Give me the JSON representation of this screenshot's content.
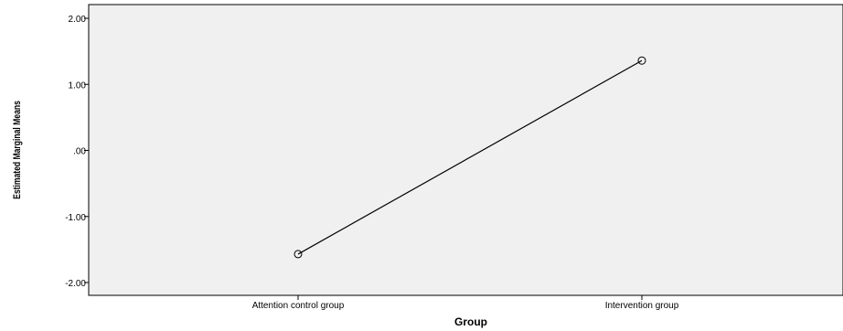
{
  "chart_data": {
    "type": "line",
    "title": "",
    "xlabel": "Group",
    "ylabel": "Estimated Marginal Means",
    "categories": [
      "Attention control group",
      "Intervention group"
    ],
    "series": [
      {
        "values": [
          -1.57,
          1.36
        ]
      }
    ],
    "ylim": [
      -2.2,
      2.2
    ],
    "yticks": [
      2.0,
      1.0,
      0.0,
      -1.0,
      -2.0
    ],
    "ytick_labels": [
      "2.00",
      "1.00",
      ".00",
      "-1.00",
      "-2.00"
    ],
    "grid": false,
    "legend": "none",
    "colors": {
      "plot_bg": "#f0f0f0",
      "line": "#000000",
      "frame": "#000000"
    }
  }
}
